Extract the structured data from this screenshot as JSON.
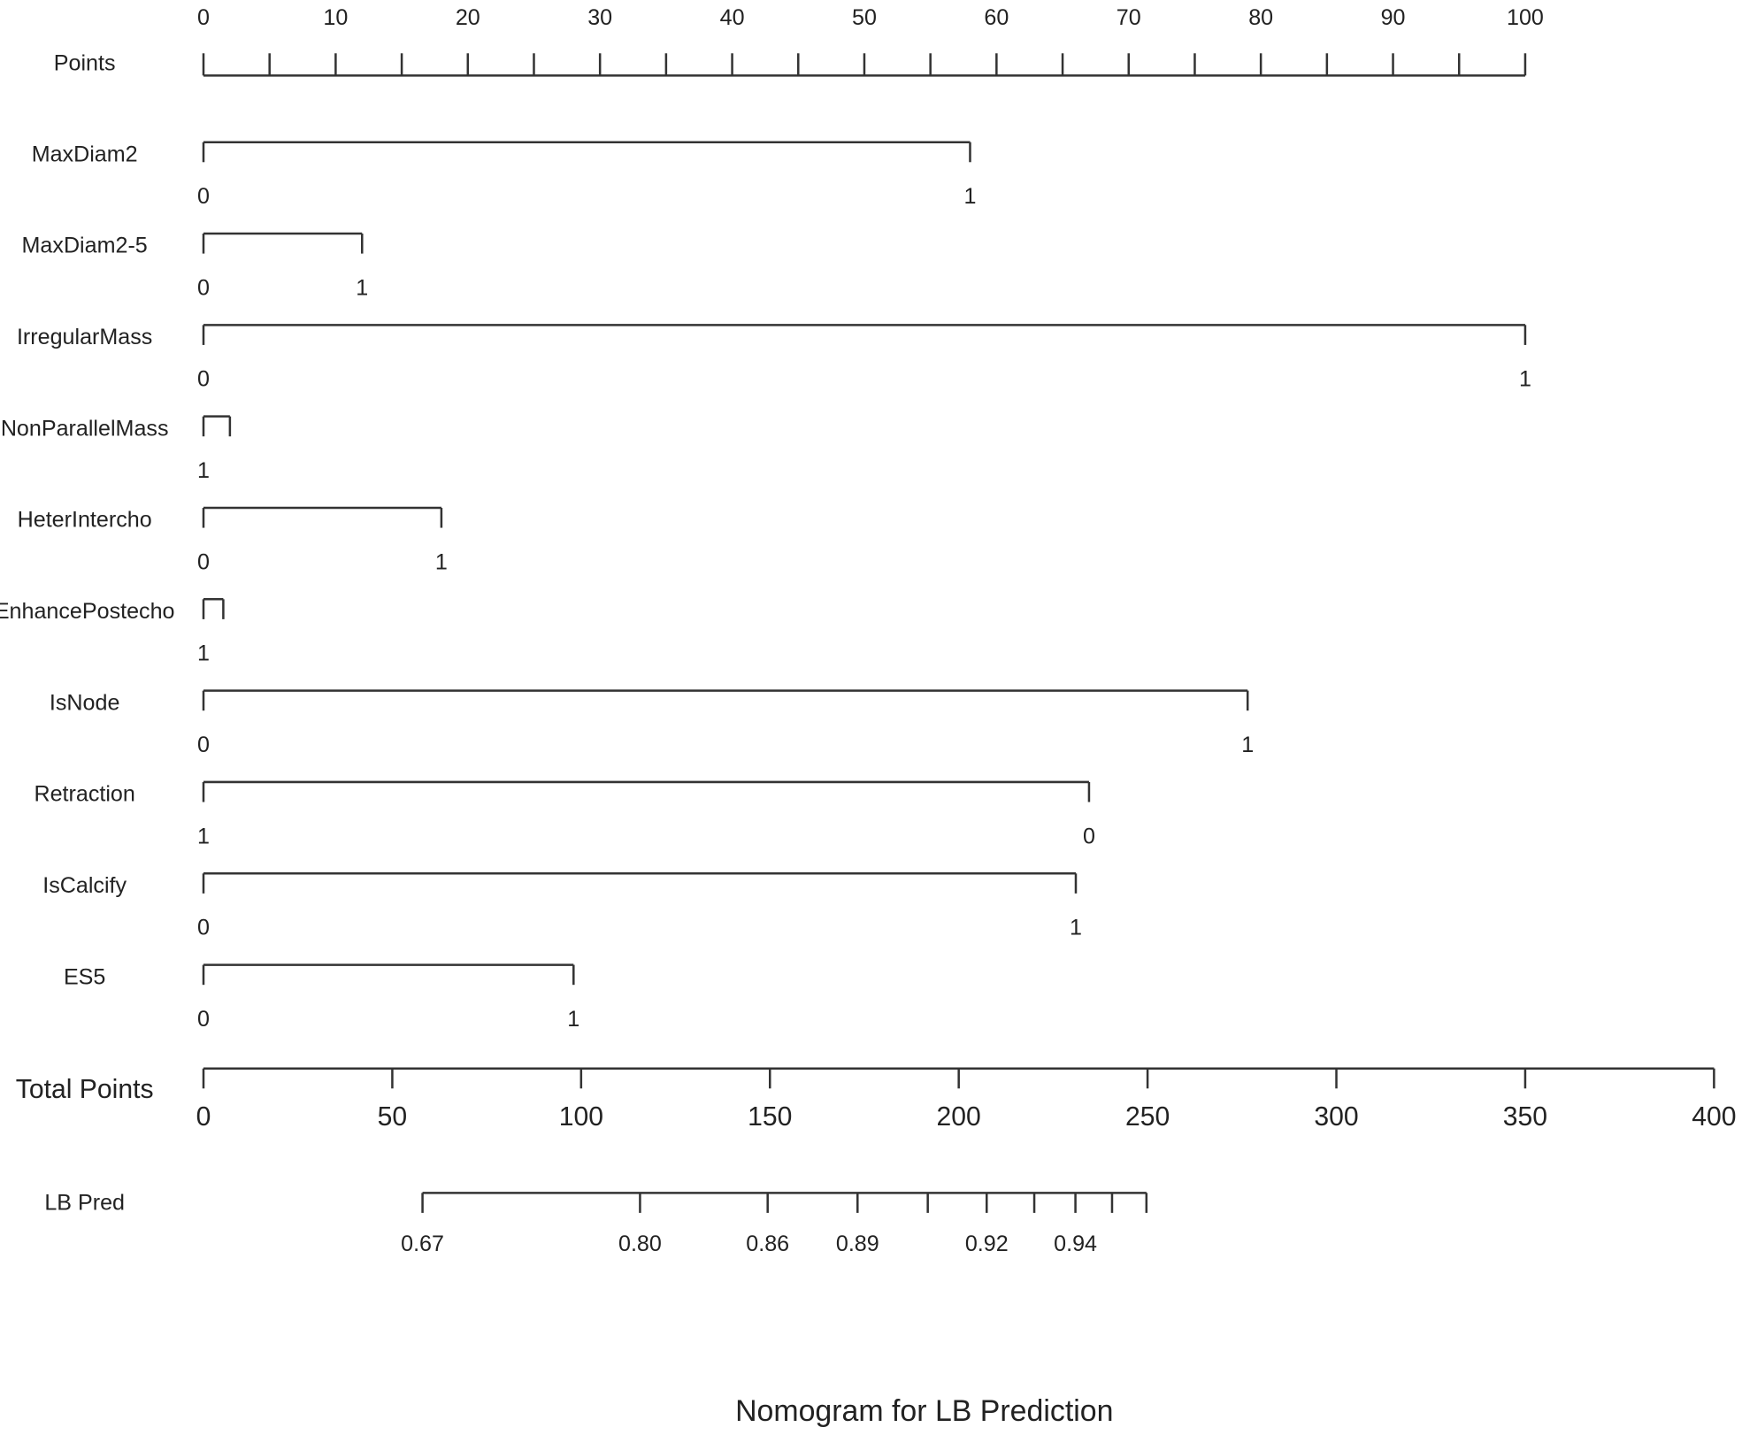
{
  "chart_data": {
    "type": "nomogram",
    "title": "Nomogram for LB Prediction",
    "points": {
      "label": "Points",
      "lim": [
        0,
        100
      ],
      "ticks": [
        0,
        10,
        20,
        30,
        40,
        50,
        60,
        70,
        80,
        90,
        100
      ],
      "minor_ticks": [
        5,
        15,
        25,
        35,
        45,
        55,
        65,
        75,
        85,
        95
      ]
    },
    "variables": [
      {
        "name": "MaxDiam2",
        "levels": [
          {
            "label": "0",
            "points": 0
          },
          {
            "label": "1",
            "points": 58
          }
        ]
      },
      {
        "name": "MaxDiam2-5",
        "levels": [
          {
            "label": "0",
            "points": 0
          },
          {
            "label": "1",
            "points": 12
          }
        ]
      },
      {
        "name": "IrregularMass",
        "levels": [
          {
            "label": "0",
            "points": 0
          },
          {
            "label": "1",
            "points": 100
          }
        ]
      },
      {
        "name": "NonParallelMass",
        "levels": [
          {
            "label": "1",
            "points": 0
          },
          {
            "label": null,
            "points": 2
          }
        ]
      },
      {
        "name": "HeterIntercho",
        "levels": [
          {
            "label": "0",
            "points": 0
          },
          {
            "label": "1",
            "points": 18
          }
        ]
      },
      {
        "name": "EnhancePostecho",
        "levels": [
          {
            "label": "1",
            "points": 0
          },
          {
            "label": null,
            "points": 1.5
          }
        ]
      },
      {
        "name": "IsNode",
        "levels": [
          {
            "label": "0",
            "points": 0
          },
          {
            "label": "1",
            "points": 79
          }
        ]
      },
      {
        "name": "Retraction",
        "levels": [
          {
            "label": "1",
            "points": 0
          },
          {
            "label": "0",
            "points": 67
          }
        ]
      },
      {
        "name": "IsCalcify",
        "levels": [
          {
            "label": "0",
            "points": 0
          },
          {
            "label": "1",
            "points": 66
          }
        ]
      },
      {
        "name": "ES5",
        "levels": [
          {
            "label": "0",
            "points": 0
          },
          {
            "label": "1",
            "points": 28
          }
        ]
      }
    ],
    "total_points": {
      "label": "Total Points",
      "lim": [
        0,
        400
      ],
      "ticks": [
        0,
        50,
        100,
        150,
        200,
        250,
        300,
        350,
        400
      ]
    },
    "prediction": {
      "label": "LB Pred",
      "ticks": [
        {
          "value": 58,
          "label": "0.67"
        },
        {
          "value": 115.6,
          "label": "0.80"
        },
        {
          "value": 149.4,
          "label": "0.86"
        },
        {
          "value": 173.2,
          "label": "0.89"
        },
        {
          "value": 191.8,
          "label": null
        },
        {
          "value": 207.4,
          "label": "0.92"
        },
        {
          "value": 220,
          "label": null
        },
        {
          "value": 230.9,
          "label": "0.94"
        },
        {
          "value": 240.6,
          "label": null
        },
        {
          "value": 249.7,
          "label": null
        }
      ]
    }
  }
}
